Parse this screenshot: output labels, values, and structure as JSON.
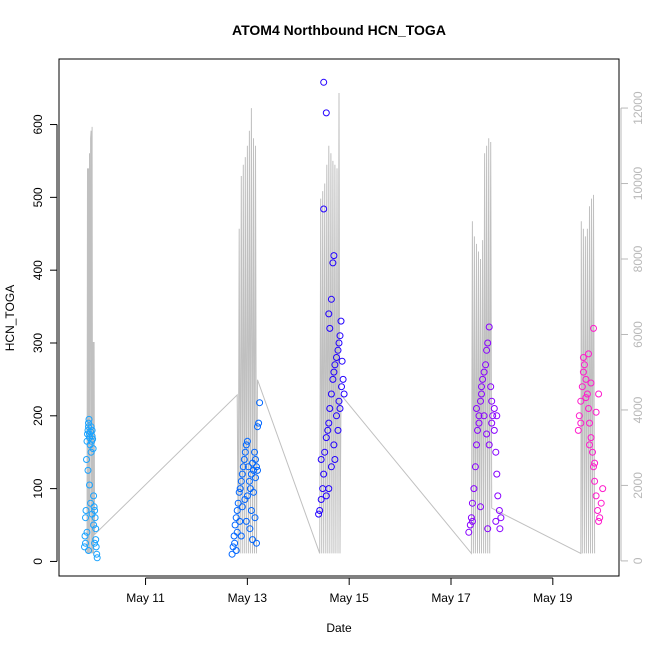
{
  "chart_data": {
    "type": "scatter",
    "title": "ATOM4 Northbound HCN_TOGA",
    "xlabel": "Date",
    "ylabel": "HCN_TOGA",
    "x_ticks": [
      "May 11",
      "May 13",
      "May 15",
      "May 17",
      "May 19"
    ],
    "x_tick_days": [
      11,
      13,
      15,
      17,
      19
    ],
    "xlim_days": [
      9.3,
      20.3
    ],
    "ylim": [
      -20,
      690
    ],
    "y_ticks": [
      0,
      100,
      200,
      300,
      400,
      500,
      600
    ],
    "y2_ticks": [
      0,
      2000,
      4000,
      6000,
      8000,
      10000,
      12000
    ],
    "y2lim": [
      -400,
      13300
    ],
    "y2_color": "#b8b8b8",
    "grid": false,
    "point_series": [
      {
        "color": "#1aa3ff",
        "points": [
          [
            9.8,
            20
          ],
          [
            9.81,
            35
          ],
          [
            9.82,
            60
          ],
          [
            9.83,
            70
          ],
          [
            9.85,
            165
          ],
          [
            9.86,
            175
          ],
          [
            9.87,
            180
          ],
          [
            9.88,
            185
          ],
          [
            9.88,
            190
          ],
          [
            9.89,
            195
          ],
          [
            9.9,
            170
          ],
          [
            9.9,
            175
          ],
          [
            9.91,
            160
          ],
          [
            9.92,
            178
          ],
          [
            9.93,
            185
          ],
          [
            9.93,
            150
          ],
          [
            9.94,
            165
          ],
          [
            9.95,
            172
          ],
          [
            9.95,
            180
          ],
          [
            9.96,
            168
          ],
          [
            9.97,
            155
          ],
          [
            9.98,
            90
          ],
          [
            9.99,
            75
          ],
          [
            10.0,
            70
          ],
          [
            10.01,
            60
          ],
          [
            10.02,
            30
          ],
          [
            10.03,
            20
          ],
          [
            10.04,
            10
          ],
          [
            10.05,
            5
          ],
          [
            9.84,
            140
          ],
          [
            9.87,
            125
          ],
          [
            9.9,
            105
          ],
          [
            9.92,
            80
          ],
          [
            9.95,
            65
          ],
          [
            9.98,
            50
          ],
          [
            9.82,
            25
          ],
          [
            9.85,
            40
          ],
          [
            9.88,
            15
          ],
          [
            10.0,
            25
          ],
          [
            10.02,
            45
          ]
        ]
      },
      {
        "color": "#0066ff",
        "points": [
          [
            12.7,
            10
          ],
          [
            12.72,
            20
          ],
          [
            12.74,
            35
          ],
          [
            12.76,
            50
          ],
          [
            12.78,
            60
          ],
          [
            12.8,
            70
          ],
          [
            12.82,
            80
          ],
          [
            12.84,
            95
          ],
          [
            12.86,
            100
          ],
          [
            12.88,
            110
          ],
          [
            12.9,
            120
          ],
          [
            12.92,
            130
          ],
          [
            12.94,
            140
          ],
          [
            12.96,
            150
          ],
          [
            12.98,
            160
          ],
          [
            13.0,
            165
          ],
          [
            13.02,
            130
          ],
          [
            13.04,
            110
          ],
          [
            13.06,
            100
          ],
          [
            13.08,
            120
          ],
          [
            13.1,
            135
          ],
          [
            13.12,
            125
          ],
          [
            13.14,
            150
          ],
          [
            13.16,
            140
          ],
          [
            13.18,
            130
          ],
          [
            13.2,
            185
          ],
          [
            13.22,
            190
          ],
          [
            13.24,
            218
          ],
          [
            12.75,
            25
          ],
          [
            12.8,
            40
          ],
          [
            12.85,
            55
          ],
          [
            12.9,
            75
          ],
          [
            12.95,
            85
          ],
          [
            13.0,
            90
          ],
          [
            13.05,
            45
          ],
          [
            13.1,
            30
          ],
          [
            13.15,
            60
          ],
          [
            13.18,
            25
          ],
          [
            12.78,
            15
          ],
          [
            12.88,
            35
          ],
          [
            12.98,
            55
          ],
          [
            13.08,
            70
          ],
          [
            13.12,
            95
          ],
          [
            13.16,
            115
          ],
          [
            13.2,
            125
          ]
        ]
      },
      {
        "color": "#2200ff",
        "points": [
          [
            14.4,
            65
          ],
          [
            14.42,
            70
          ],
          [
            14.45,
            85
          ],
          [
            14.48,
            100
          ],
          [
            14.5,
            120
          ],
          [
            14.52,
            150
          ],
          [
            14.55,
            170
          ],
          [
            14.58,
            180
          ],
          [
            14.6,
            190
          ],
          [
            14.62,
            210
          ],
          [
            14.65,
            230
          ],
          [
            14.68,
            250
          ],
          [
            14.7,
            260
          ],
          [
            14.72,
            270
          ],
          [
            14.75,
            280
          ],
          [
            14.78,
            290
          ],
          [
            14.8,
            300
          ],
          [
            14.82,
            310
          ],
          [
            14.84,
            330
          ],
          [
            14.86,
            275
          ],
          [
            14.88,
            250
          ],
          [
            14.9,
            230
          ],
          [
            14.6,
            340
          ],
          [
            14.62,
            320
          ],
          [
            14.65,
            360
          ],
          [
            14.68,
            410
          ],
          [
            14.7,
            420
          ],
          [
            14.5,
            484
          ],
          [
            14.55,
            616
          ],
          [
            14.5,
            658
          ],
          [
            14.6,
            100
          ],
          [
            14.65,
            130
          ],
          [
            14.7,
            160
          ],
          [
            14.75,
            200
          ],
          [
            14.8,
            220
          ],
          [
            14.85,
            240
          ],
          [
            14.45,
            140
          ],
          [
            14.55,
            90
          ],
          [
            14.72,
            140
          ],
          [
            14.78,
            180
          ],
          [
            14.82,
            210
          ]
        ]
      },
      {
        "color": "#8800ff",
        "points": [
          [
            17.35,
            40
          ],
          [
            17.38,
            50
          ],
          [
            17.4,
            60
          ],
          [
            17.42,
            80
          ],
          [
            17.45,
            100
          ],
          [
            17.48,
            130
          ],
          [
            17.5,
            160
          ],
          [
            17.52,
            180
          ],
          [
            17.55,
            200
          ],
          [
            17.58,
            220
          ],
          [
            17.6,
            240
          ],
          [
            17.62,
            250
          ],
          [
            17.65,
            260
          ],
          [
            17.68,
            270
          ],
          [
            17.7,
            290
          ],
          [
            17.72,
            300
          ],
          [
            17.75,
            322
          ],
          [
            17.78,
            240
          ],
          [
            17.8,
            220
          ],
          [
            17.82,
            200
          ],
          [
            17.85,
            180
          ],
          [
            17.88,
            150
          ],
          [
            17.9,
            120
          ],
          [
            17.92,
            90
          ],
          [
            17.95,
            70
          ],
          [
            17.98,
            60
          ],
          [
            17.5,
            210
          ],
          [
            17.55,
            190
          ],
          [
            17.6,
            230
          ],
          [
            17.65,
            200
          ],
          [
            17.7,
            175
          ],
          [
            17.75,
            160
          ],
          [
            17.8,
            190
          ],
          [
            17.85,
            210
          ],
          [
            17.9,
            200
          ],
          [
            17.42,
            55
          ],
          [
            17.58,
            75
          ],
          [
            17.72,
            45
          ],
          [
            17.88,
            55
          ],
          [
            17.96,
            45
          ]
        ]
      },
      {
        "color": "#ff1acc",
        "points": [
          [
            19.5,
            180
          ],
          [
            19.52,
            200
          ],
          [
            19.55,
            220
          ],
          [
            19.58,
            240
          ],
          [
            19.6,
            260
          ],
          [
            19.62,
            270
          ],
          [
            19.65,
            250
          ],
          [
            19.68,
            230
          ],
          [
            19.7,
            210
          ],
          [
            19.72,
            190
          ],
          [
            19.75,
            170
          ],
          [
            19.78,
            150
          ],
          [
            19.8,
            130
          ],
          [
            19.82,
            110
          ],
          [
            19.85,
            90
          ],
          [
            19.88,
            70
          ],
          [
            19.9,
            55
          ],
          [
            19.92,
            60
          ],
          [
            19.95,
            80
          ],
          [
            19.98,
            100
          ],
          [
            19.6,
            280
          ],
          [
            19.7,
            285
          ],
          [
            19.8,
            320
          ],
          [
            19.65,
            225
          ],
          [
            19.75,
            245
          ],
          [
            19.85,
            205
          ],
          [
            19.9,
            230
          ],
          [
            19.55,
            190
          ],
          [
            19.72,
            160
          ],
          [
            19.82,
            135
          ]
        ]
      }
    ],
    "secondary_line": {
      "color": "#c0c0c0",
      "points": [
        [
          9.85,
          200
        ],
        [
          9.86,
          10400
        ],
        [
          9.87,
          200
        ],
        [
          9.88,
          10400
        ],
        [
          9.89,
          200
        ],
        [
          9.9,
          10800
        ],
        [
          9.91,
          200
        ],
        [
          9.92,
          11200
        ],
        [
          9.93,
          11400
        ],
        [
          9.94,
          200
        ],
        [
          9.95,
          11500
        ],
        [
          9.96,
          200
        ],
        [
          9.97,
          5800
        ],
        [
          9.98,
          200
        ],
        [
          9.99,
          5800
        ],
        [
          10.0,
          700
        ],
        [
          12.8,
          4400
        ],
        [
          12.82,
          200
        ],
        [
          12.84,
          8800
        ],
        [
          12.86,
          200
        ],
        [
          12.88,
          10200
        ],
        [
          12.9,
          200
        ],
        [
          12.92,
          10500
        ],
        [
          12.94,
          200
        ],
        [
          12.96,
          10700
        ],
        [
          12.98,
          200
        ],
        [
          13.0,
          11000
        ],
        [
          13.02,
          200
        ],
        [
          13.04,
          11400
        ],
        [
          13.06,
          200
        ],
        [
          13.08,
          12000
        ],
        [
          13.1,
          200
        ],
        [
          13.12,
          11200
        ],
        [
          13.14,
          200
        ],
        [
          13.16,
          11000
        ],
        [
          13.18,
          200
        ],
        [
          13.2,
          4800
        ],
        [
          14.42,
          200
        ],
        [
          14.44,
          9600
        ],
        [
          14.46,
          200
        ],
        [
          14.48,
          9800
        ],
        [
          14.5,
          200
        ],
        [
          14.52,
          10000
        ],
        [
          14.54,
          200
        ],
        [
          14.56,
          10500
        ],
        [
          14.58,
          200
        ],
        [
          14.6,
          11000
        ],
        [
          14.62,
          200
        ],
        [
          14.64,
          10800
        ],
        [
          14.66,
          200
        ],
        [
          14.68,
          10600
        ],
        [
          14.7,
          200
        ],
        [
          14.72,
          10500
        ],
        [
          14.74,
          200
        ],
        [
          14.76,
          10400
        ],
        [
          14.78,
          200
        ],
        [
          14.8,
          12400
        ],
        [
          14.82,
          200
        ],
        [
          14.84,
          4400
        ],
        [
          17.4,
          200
        ],
        [
          17.42,
          9000
        ],
        [
          17.44,
          200
        ],
        [
          17.46,
          8600
        ],
        [
          17.48,
          200
        ],
        [
          17.5,
          8400
        ],
        [
          17.52,
          200
        ],
        [
          17.54,
          8200
        ],
        [
          17.56,
          200
        ],
        [
          17.58,
          8000
        ],
        [
          17.6,
          200
        ],
        [
          17.62,
          8500
        ],
        [
          17.64,
          200
        ],
        [
          17.66,
          10800
        ],
        [
          17.68,
          200
        ],
        [
          17.7,
          11000
        ],
        [
          17.72,
          200
        ],
        [
          17.74,
          11200
        ],
        [
          17.76,
          200
        ],
        [
          17.78,
          11100
        ],
        [
          17.8,
          1400
        ],
        [
          19.55,
          200
        ],
        [
          19.56,
          9000
        ],
        [
          19.58,
          200
        ],
        [
          19.6,
          8800
        ],
        [
          19.62,
          200
        ],
        [
          19.64,
          8600
        ],
        [
          19.66,
          200
        ],
        [
          19.68,
          8800
        ],
        [
          19.7,
          200
        ],
        [
          19.72,
          9400
        ],
        [
          19.74,
          200
        ],
        [
          19.76,
          9600
        ],
        [
          19.78,
          200
        ],
        [
          19.8,
          9700
        ],
        [
          19.82,
          200
        ]
      ]
    }
  }
}
